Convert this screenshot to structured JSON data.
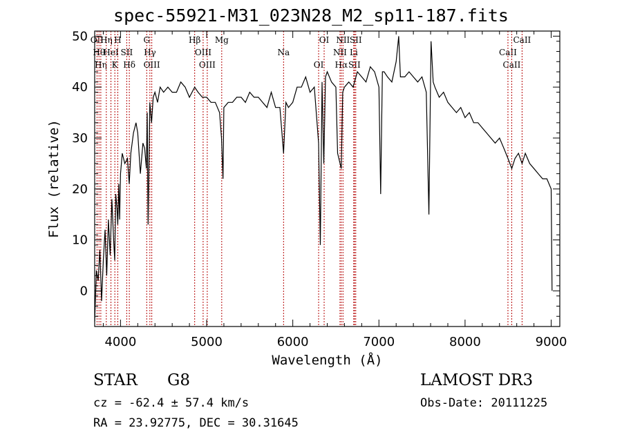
{
  "title": "spec-55921-M31_023N28_M2_sp11-187.fits",
  "info": {
    "class": "STAR",
    "subclass": "G8",
    "cz": "cz = -62.4 ± 57.4 km/s",
    "radec": "RA =  23.92775, DEC =  30.31645",
    "survey": "LAMOST DR3",
    "obsdate": "Obs-Date: 20111225"
  },
  "chart_data": {
    "type": "line",
    "xlabel": "Wavelength (Å)",
    "ylabel": "Flux (relative)",
    "xlim": [
      3700,
      9100
    ],
    "ylim": [
      -7,
      51
    ],
    "xticks": [
      4000,
      5000,
      6000,
      7000,
      8000,
      9000
    ],
    "yticks": [
      0,
      10,
      20,
      30,
      40,
      50
    ],
    "grid": false,
    "series": [
      {
        "x": [
          3700,
          3720,
          3740,
          3760,
          3780,
          3800,
          3820,
          3840,
          3860,
          3880,
          3900,
          3920,
          3933,
          3945,
          3960,
          3968,
          3980,
          3990,
          4000,
          4020,
          4050,
          4080,
          4101,
          4120,
          4150,
          4180,
          4200,
          4230,
          4260,
          4280,
          4300,
          4310,
          4320,
          4340,
          4360,
          4380,
          4400,
          4430,
          4460,
          4500,
          4550,
          4600,
          4650,
          4700,
          4750,
          4800,
          4861,
          4900,
          4950,
          5000,
          5050,
          5100,
          5150,
          5172,
          5190,
          5200,
          5250,
          5300,
          5350,
          5400,
          5450,
          5500,
          5550,
          5600,
          5650,
          5700,
          5750,
          5800,
          5850,
          5893,
          5920,
          5950,
          6000,
          6050,
          6100,
          6150,
          6200,
          6250,
          6300,
          6320,
          6340,
          6360,
          6380,
          6400,
          6450,
          6500,
          6520,
          6563,
          6580,
          6600,
          6650,
          6700,
          6750,
          6800,
          6850,
          6900,
          6950,
          7000,
          7020,
          7040,
          7060,
          7100,
          7150,
          7200,
          7230,
          7250,
          7300,
          7350,
          7400,
          7450,
          7500,
          7550,
          7580,
          7605,
          7630,
          7650,
          7700,
          7750,
          7800,
          7850,
          7900,
          7950,
          8000,
          8050,
          8100,
          8150,
          8200,
          8250,
          8300,
          8350,
          8400,
          8450,
          8498,
          8542,
          8580,
          8620,
          8662,
          8700,
          8750,
          8800,
          8850,
          8900,
          8950,
          9000,
          9010
        ],
        "values": [
          -6,
          4,
          2,
          8,
          -2,
          6,
          12,
          3,
          14,
          7,
          18,
          10,
          6,
          19,
          16,
          13,
          21,
          14,
          23,
          27,
          25,
          26,
          21,
          27,
          31,
          33,
          31,
          23,
          29,
          28,
          24,
          35,
          13,
          37,
          33,
          38,
          39,
          37,
          40,
          39,
          40,
          39,
          39,
          41,
          40,
          38,
          40,
          39,
          38,
          38,
          37,
          37,
          35,
          30,
          22,
          36,
          37,
          37,
          38,
          38,
          37,
          39,
          38,
          38,
          37,
          36,
          39,
          36,
          36,
          27,
          37,
          36,
          37,
          40,
          40,
          42,
          39,
          40,
          29,
          9,
          41,
          25,
          42,
          43,
          41,
          40,
          27,
          24,
          39,
          40,
          41,
          40,
          43,
          42,
          41,
          44,
          43,
          40,
          19,
          43,
          43,
          42,
          41,
          45,
          50,
          42,
          42,
          43,
          42,
          41,
          42,
          39,
          15,
          49,
          41,
          40,
          38,
          39,
          37,
          36,
          35,
          36,
          34,
          35,
          33,
          33,
          32,
          31,
          30,
          29,
          30,
          28,
          26,
          24,
          26,
          27,
          25,
          27,
          25,
          24,
          23,
          22,
          22,
          20,
          0
        ]
      }
    ],
    "lines": [
      {
        "x": 3727,
        "label": "OII"
      },
      {
        "x": 3750,
        "label": "Hθ"
      },
      {
        "x": 3771,
        "label": "Hη"
      },
      {
        "x": 3835,
        "label": "Hη"
      },
      {
        "x": 3889,
        "label": "HeI"
      },
      {
        "x": 3934,
        "label": "K"
      },
      {
        "x": 3968,
        "label": "H"
      },
      {
        "x": 4072,
        "label": "SII"
      },
      {
        "x": 4102,
        "label": "Hδ"
      },
      {
        "x": 4304,
        "label": "G"
      },
      {
        "x": 4341,
        "label": "Hγ"
      },
      {
        "x": 4363,
        "label": "OIII"
      },
      {
        "x": 4861,
        "label": "Hβ"
      },
      {
        "x": 4959,
        "label": "OIII"
      },
      {
        "x": 5007,
        "label": "OIII"
      },
      {
        "x": 5175,
        "label": "Mg"
      },
      {
        "x": 5893,
        "label": "Na"
      },
      {
        "x": 6300,
        "label": "OI"
      },
      {
        "x": 6364,
        "label": "OI"
      },
      {
        "x": 6548,
        "label": "NII"
      },
      {
        "x": 6563,
        "label": "Hα"
      },
      {
        "x": 6583,
        "label": "NII"
      },
      {
        "x": 6708,
        "label": "Li"
      },
      {
        "x": 6716,
        "label": "SII"
      },
      {
        "x": 6731,
        "label": "SII"
      },
      {
        "x": 8498,
        "label": "CaII"
      },
      {
        "x": 8542,
        "label": "CaII"
      },
      {
        "x": 8662,
        "label": "CaII"
      }
    ]
  }
}
